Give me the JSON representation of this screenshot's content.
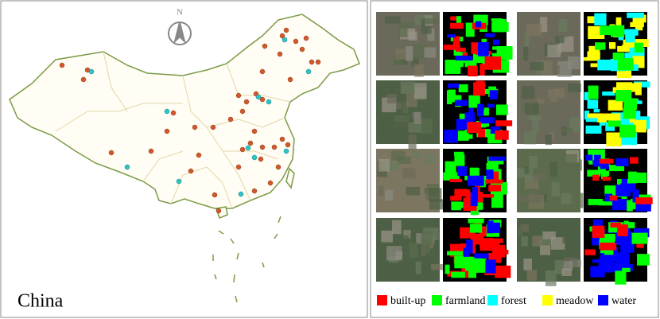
{
  "map": {
    "north_label": "N",
    "region_label": "China"
  },
  "legend": {
    "items": [
      {
        "name": "built-up",
        "color": "#ff0000"
      },
      {
        "name": "farmland",
        "color": "#00ff00"
      },
      {
        "name": "forest",
        "color": "#00ffff"
      },
      {
        "name": "meadow",
        "color": "#ffff00"
      },
      {
        "name": "water",
        "color": "#0000ff"
      }
    ]
  }
}
